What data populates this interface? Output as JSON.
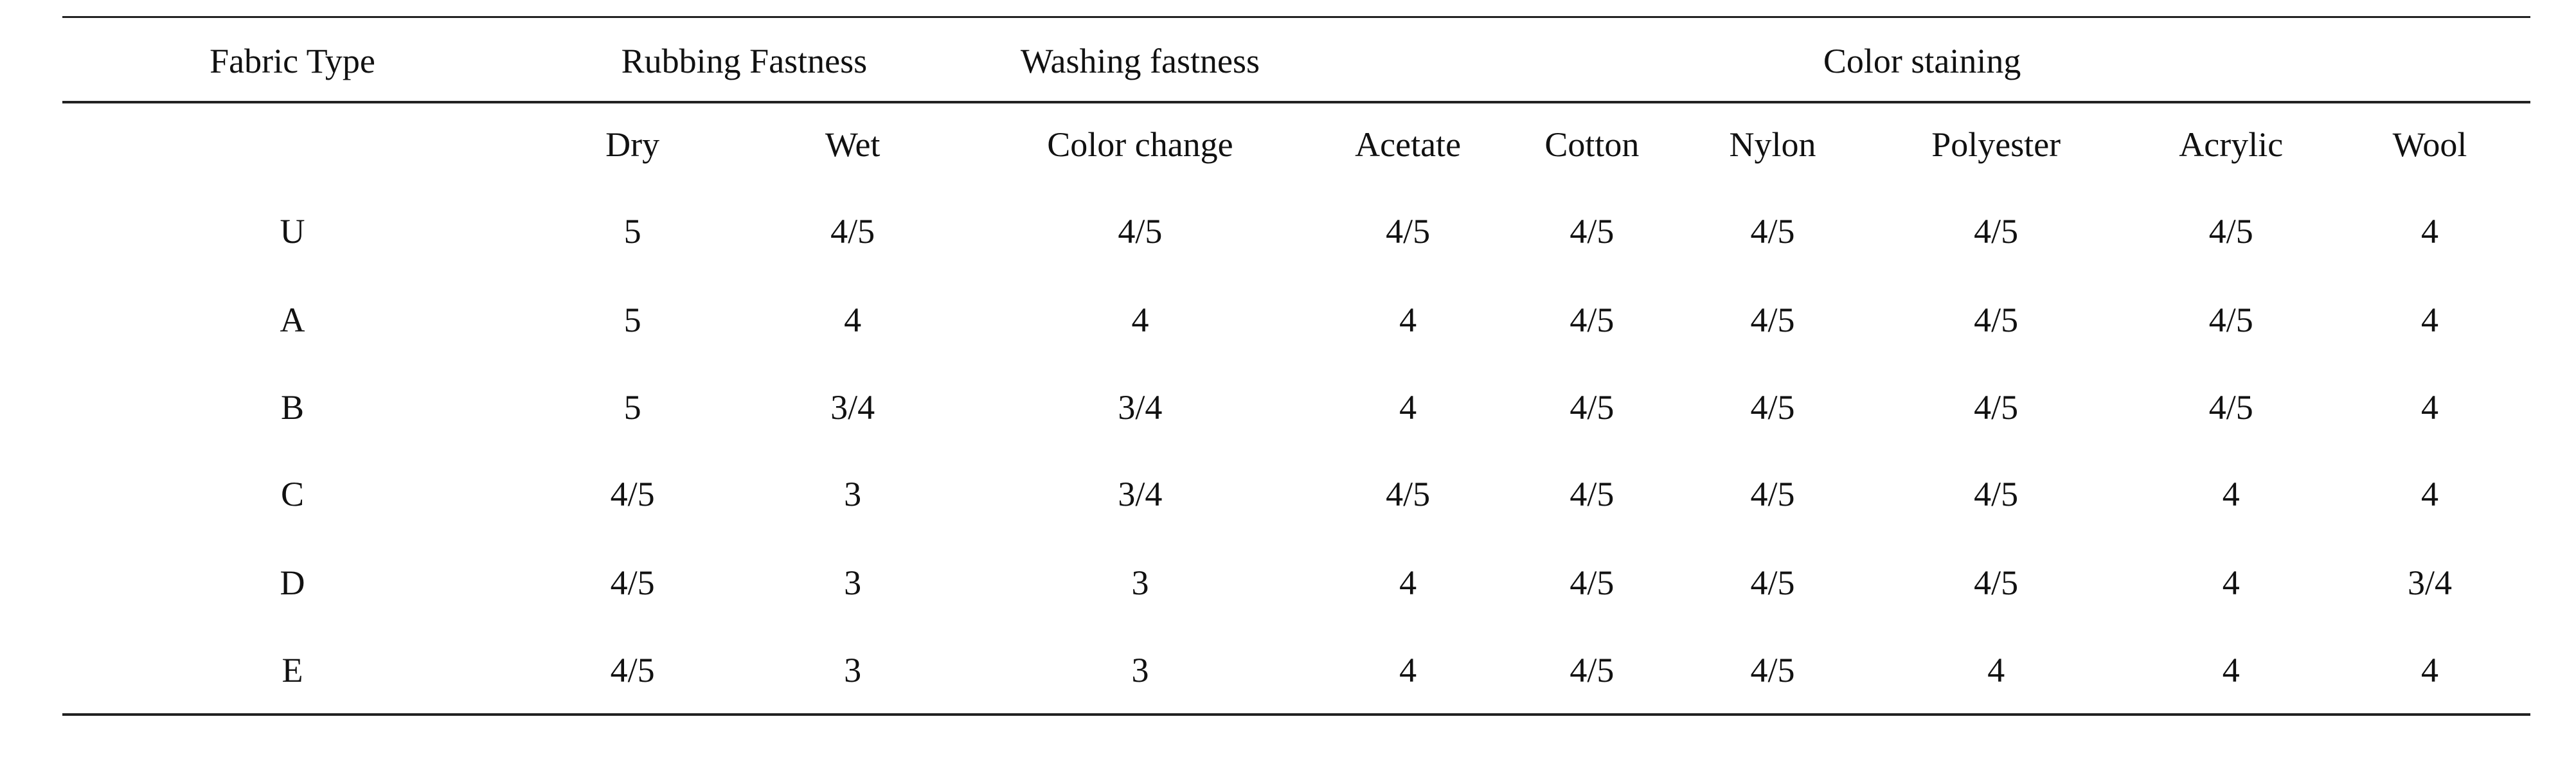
{
  "table": {
    "group_headers": [
      "Fabric Type",
      "Rubbing Fastness",
      "Washing fastness",
      "Color staining"
    ],
    "sub_headers": [
      "Dry",
      "Wet",
      "Color change",
      "Acetate",
      "Cotton",
      "Nylon",
      "Polyester",
      "Acrylic",
      "Wool"
    ],
    "rows": [
      [
        "U",
        "5",
        "4/5",
        "4/5",
        "4/5",
        "4/5",
        "4/5",
        "4/5",
        "4/5",
        "4"
      ],
      [
        "A",
        "5",
        "4",
        "4",
        "4",
        "4/5",
        "4/5",
        "4/5",
        "4/5",
        "4"
      ],
      [
        "B",
        "5",
        "3/4",
        "3/4",
        "4",
        "4/5",
        "4/5",
        "4/5",
        "4/5",
        "4"
      ],
      [
        "C",
        "4/5",
        "3",
        "3/4",
        "4/5",
        "4/5",
        "4/5",
        "4/5",
        "4",
        "4"
      ],
      [
        "D",
        "4/5",
        "3",
        "3",
        "4",
        "4/5",
        "4/5",
        "4/5",
        "4",
        "3/4"
      ],
      [
        "E",
        "4/5",
        "3",
        "3",
        "4",
        "4/5",
        "4/5",
        "4",
        "4",
        "4"
      ]
    ]
  }
}
